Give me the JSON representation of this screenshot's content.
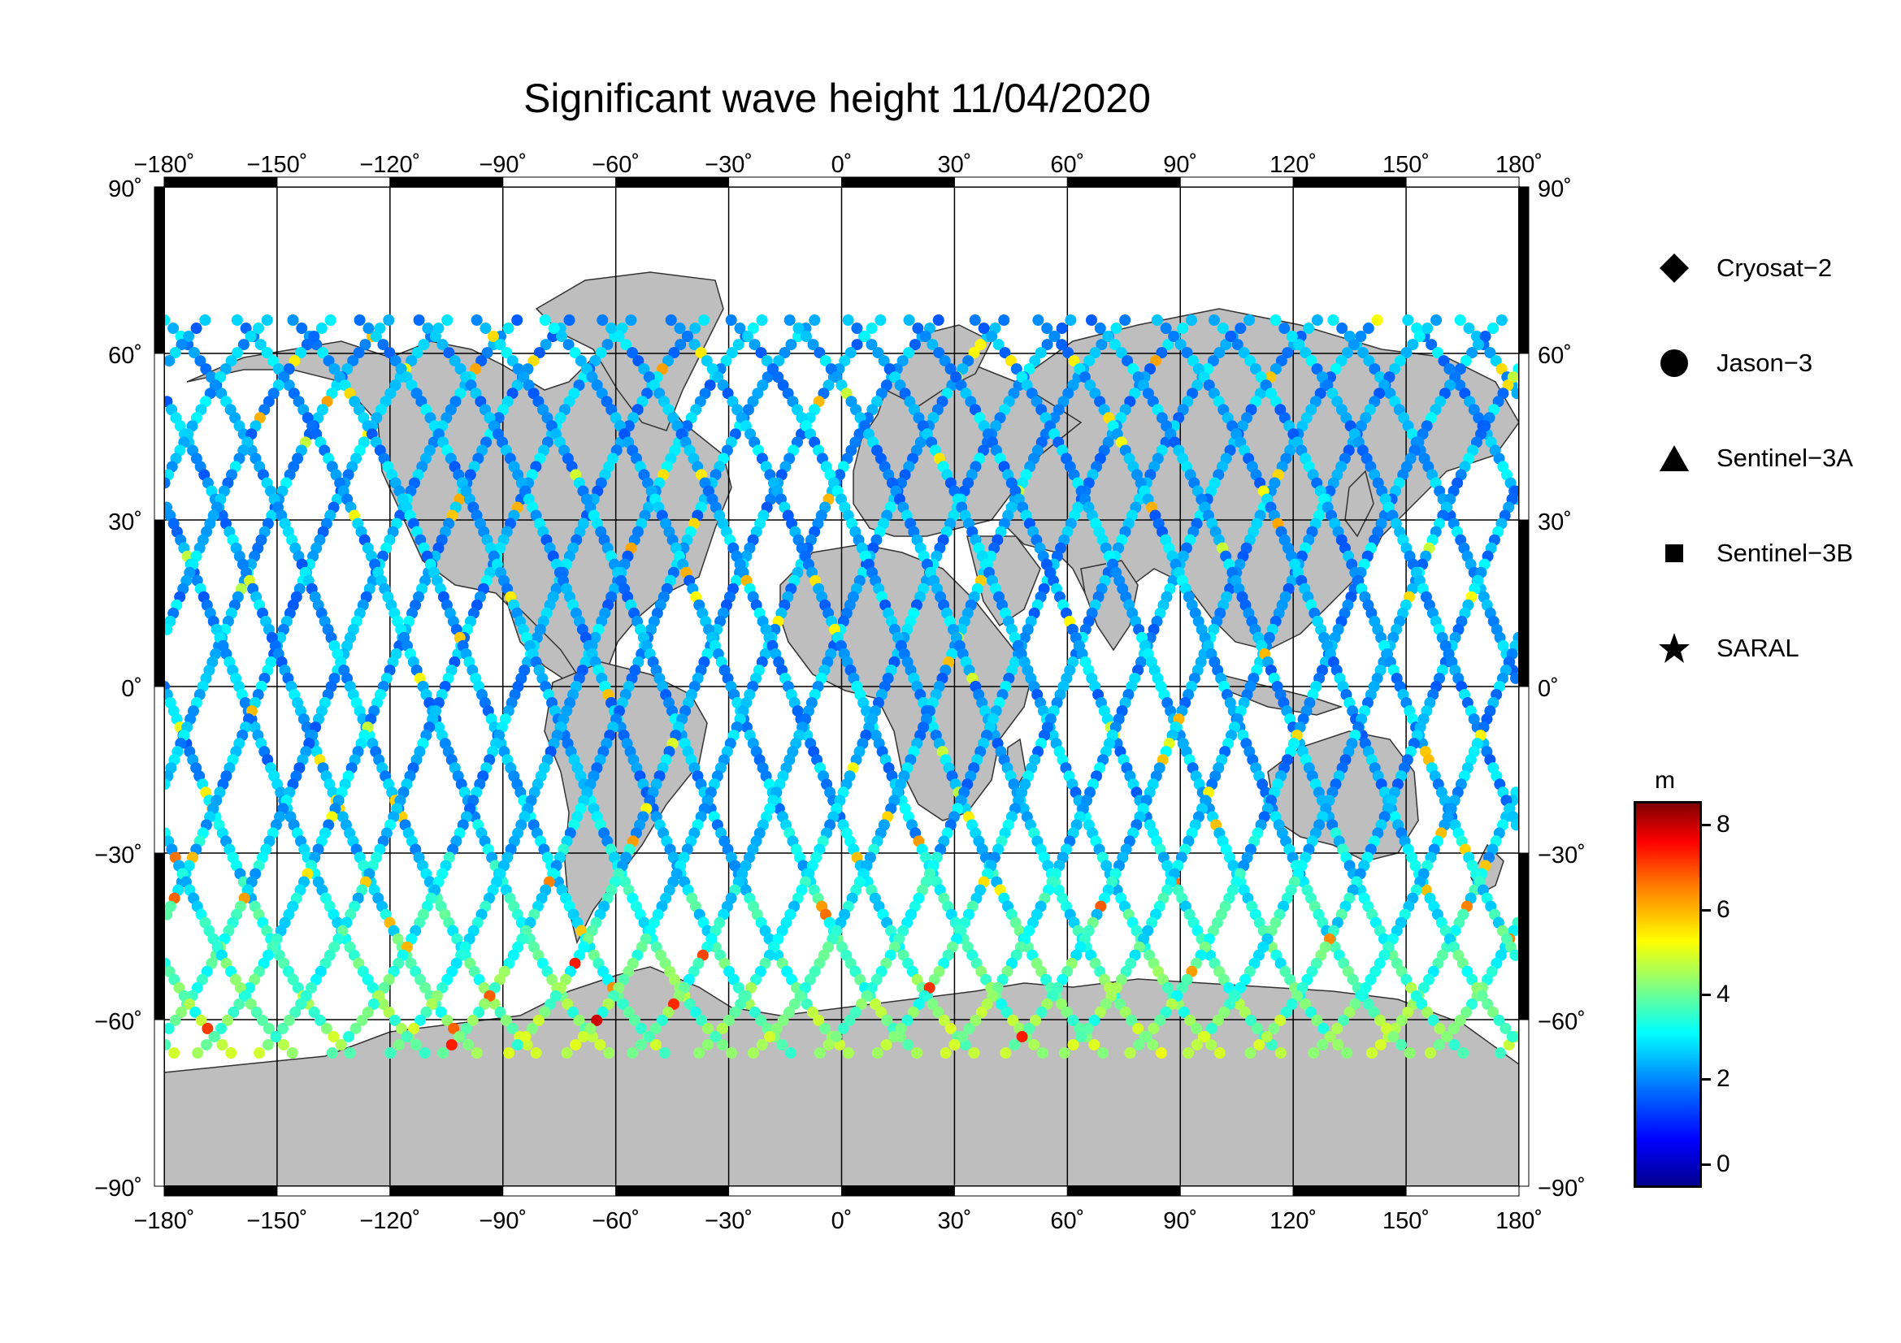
{
  "title": "Significant wave height 11/04/2020",
  "lon_ticks": [
    "−180˚",
    "−150˚",
    "−120˚",
    "−90˚",
    "−60˚",
    "−30˚",
    "0˚",
    "30˚",
    "60˚",
    "90˚",
    "120˚",
    "150˚",
    "180˚"
  ],
  "lat_ticks_left": [
    "90˚",
    "60˚",
    "30˚",
    "0˚",
    "−30˚",
    "−60˚",
    "−90˚"
  ],
  "lat_ticks_right": [
    "90˚",
    "60˚",
    "30˚",
    "0˚",
    "−30˚",
    "−60˚",
    "−90˚"
  ],
  "legend": [
    {
      "label": "Cryosat−2",
      "symbol": "diamond-icon"
    },
    {
      "label": "Jason−3",
      "symbol": "circle-icon"
    },
    {
      "label": "Sentinel−3A",
      "symbol": "triangle-icon"
    },
    {
      "label": "Sentinel−3B",
      "symbol": "square-icon"
    },
    {
      "label": "SARAL",
      "symbol": "star-icon"
    }
  ],
  "colorbar": {
    "unit": "m",
    "ticks": [
      "8",
      "6",
      "4",
      "2",
      "0"
    ],
    "range": [
      -0.5,
      8.5
    ]
  },
  "colors": {
    "land": "#bebebe",
    "ocean": "#ffffff"
  }
}
